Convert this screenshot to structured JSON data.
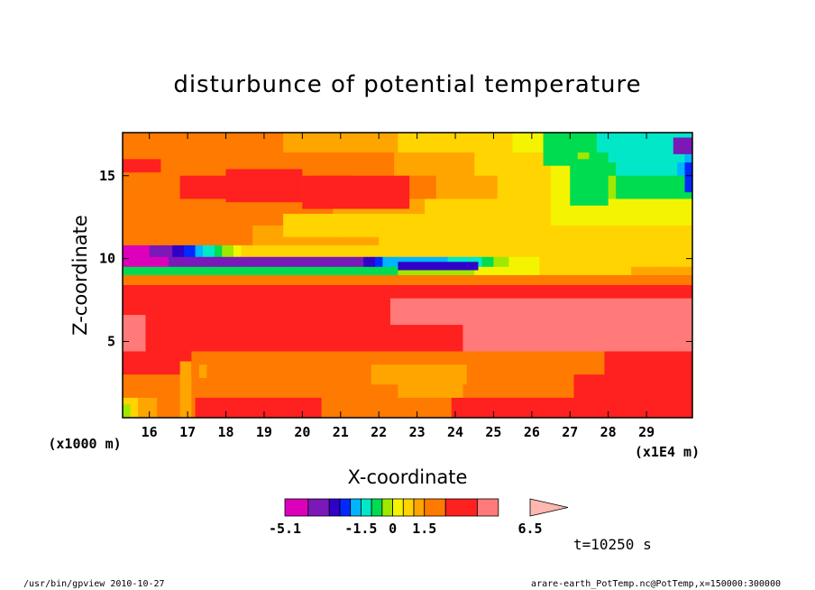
{
  "chart_data": {
    "type": "heatmap",
    "title": "disturbunce of potential temperature",
    "xlabel": "X-coordinate",
    "ylabel": "Z-coordinate",
    "x_unit_label": "(x1E4 m)",
    "y_unit_label": "(x1000 m)",
    "xlim": [
      15.3,
      30.2
    ],
    "ylim": [
      0.4,
      17.6
    ],
    "x_ticks": [
      16,
      17,
      18,
      19,
      20,
      21,
      22,
      23,
      24,
      25,
      26,
      27,
      28,
      29
    ],
    "y_ticks": [
      5,
      10,
      15
    ],
    "colorbar": {
      "levels": [
        -5.1,
        -4,
        -3,
        -2.5,
        -2,
        -1.5,
        -1,
        -0.5,
        0,
        0.5,
        1,
        1.5,
        2.5,
        4,
        5,
        6.5
      ],
      "tick_labels": [
        "-5.1",
        "-1.5",
        "0",
        "1.5",
        "6.5"
      ],
      "colors": [
        "#dd00bb",
        "#7a18b8",
        "#3000c8",
        "#0028ff",
        "#00b4ff",
        "#00e8c8",
        "#00dc50",
        "#a0e800",
        "#f4f400",
        "#ffd400",
        "#ffa500",
        "#ff7a00",
        "#ff2020",
        "#ff7a78",
        "#ffb8b0"
      ]
    },
    "field_rows": [
      {
        "z_top": 17.6,
        "z_bottom": 16.4,
        "values": [
          [
            15.3,
            2
          ],
          [
            17.5,
            2
          ],
          [
            19.5,
            1.5
          ],
          [
            22.5,
            1
          ],
          [
            24.5,
            0.7
          ],
          [
            26,
            0.4
          ],
          [
            27,
            -0.6
          ],
          [
            28,
            -1.2
          ],
          [
            30.2,
            -1.5
          ]
        ]
      },
      {
        "z_top": 16.4,
        "z_bottom": 15.0,
        "values": [
          [
            15.3,
            2.3
          ],
          [
            18,
            2
          ],
          [
            20,
            2
          ],
          [
            22,
            1.6
          ],
          [
            24.5,
            1
          ],
          [
            26.5,
            0.5
          ],
          [
            27.3,
            -0.3
          ],
          [
            28.3,
            -1.1
          ],
          [
            30.2,
            -1.6
          ]
        ]
      },
      {
        "z_top": 15.0,
        "z_bottom": 13.6,
        "values": [
          [
            15.3,
            2.1
          ],
          [
            18,
            2.8
          ],
          [
            20,
            2.4
          ],
          [
            21,
            2.7
          ],
          [
            22.5,
            1.8
          ],
          [
            24.5,
            1.2
          ],
          [
            26,
            0.7
          ],
          [
            27.3,
            0.2
          ],
          [
            28.5,
            -0.7
          ],
          [
            30.2,
            -0.9
          ]
        ]
      },
      {
        "z_top": 13.6,
        "z_bottom": 12.0,
        "values": [
          [
            15.3,
            2
          ],
          [
            18,
            2
          ],
          [
            20,
            1.7
          ],
          [
            22,
            1.2
          ],
          [
            24.5,
            0.8
          ],
          [
            26.5,
            0.5
          ],
          [
            28.5,
            0.4
          ],
          [
            30.2,
            0.3
          ]
        ]
      },
      {
        "z_top": 12.0,
        "z_bottom": 10.8,
        "values": [
          [
            15.3,
            2
          ],
          [
            17.5,
            1.8
          ],
          [
            20,
            1.2
          ],
          [
            23,
            0.9
          ],
          [
            25.5,
            0.7
          ],
          [
            28,
            0.6
          ],
          [
            30.2,
            0.6
          ]
        ]
      },
      {
        "z_top": 10.8,
        "z_bottom": 10.1,
        "values": [
          [
            15.3,
            -5.1
          ],
          [
            16,
            -4
          ],
          [
            17,
            -2.3
          ],
          [
            18.5,
            0.6
          ],
          [
            20,
            0.6
          ],
          [
            22,
            0.5
          ],
          [
            24,
            0.7
          ],
          [
            26,
            0.8
          ],
          [
            30.2,
            1
          ]
        ]
      },
      {
        "z_top": 10.1,
        "z_bottom": 9.5,
        "values": [
          [
            15.3,
            -5
          ],
          [
            16.5,
            -4
          ],
          [
            18,
            -3.8
          ],
          [
            20,
            -3.6
          ],
          [
            21.5,
            -3.3
          ],
          [
            22.3,
            -1.7
          ],
          [
            23.5,
            -1.6
          ],
          [
            24.6,
            -1.2
          ],
          [
            25.5,
            0.2
          ],
          [
            26.5,
            0.6
          ],
          [
            30.2,
            0.8
          ]
        ]
      },
      {
        "z_top": 9.5,
        "z_bottom": 9.0,
        "values": [
          [
            15.3,
            -1
          ],
          [
            17,
            -1
          ],
          [
            20,
            -1
          ],
          [
            22.5,
            -0.5
          ],
          [
            24.5,
            0
          ],
          [
            26.5,
            0.6
          ],
          [
            30.2,
            1.3
          ]
        ]
      },
      {
        "z_top": 9.0,
        "z_bottom": 8.4,
        "values": [
          [
            15.3,
            1.5
          ],
          [
            20,
            1.5
          ],
          [
            25,
            1.6
          ],
          [
            30.2,
            1.9
          ]
        ]
      },
      {
        "z_top": 8.4,
        "z_bottom": 6.6,
        "values": [
          [
            15.3,
            2.7
          ],
          [
            20,
            2.7
          ],
          [
            24,
            2.9
          ],
          [
            27,
            3
          ],
          [
            30.2,
            3.1
          ]
        ]
      },
      {
        "z_top": 6.6,
        "z_bottom": 4.4,
        "values": [
          [
            15.3,
            4.2
          ],
          [
            18,
            3.3
          ],
          [
            20,
            2.8
          ],
          [
            21.5,
            3
          ],
          [
            23,
            3.8
          ],
          [
            26,
            4.3
          ],
          [
            30.2,
            4.5
          ]
        ]
      },
      {
        "z_top": 4.4,
        "z_bottom": 3.0,
        "values": [
          [
            15.3,
            3
          ],
          [
            17.5,
            2.4
          ],
          [
            20,
            2.3
          ],
          [
            22.5,
            1.7
          ],
          [
            25,
            1.9
          ],
          [
            27,
            2.3
          ],
          [
            30.2,
            3
          ]
        ]
      },
      {
        "z_top": 3.0,
        "z_bottom": 1.6,
        "values": [
          [
            15.3,
            2.3
          ],
          [
            16.5,
            2.2
          ],
          [
            18,
            2.4
          ],
          [
            20,
            2.2
          ],
          [
            22,
            1.6
          ],
          [
            23.5,
            1.3
          ],
          [
            25,
            1.7
          ],
          [
            26.5,
            2.3
          ],
          [
            28,
            2.8
          ],
          [
            30.2,
            3
          ]
        ]
      },
      {
        "z_top": 1.6,
        "z_bottom": 0.4,
        "values": [
          [
            15.3,
            0.5
          ],
          [
            16,
            1.3
          ],
          [
            17,
            2.4
          ],
          [
            18,
            2.8
          ],
          [
            20,
            2.6
          ],
          [
            22,
            2.2
          ],
          [
            24.5,
            2.6
          ],
          [
            26.5,
            2.8
          ],
          [
            30.2,
            3
          ]
        ]
      }
    ],
    "cells": [
      {
        "x0": 15.3,
        "x1": 16.3,
        "z0": 15.2,
        "z1": 16.0,
        "value": 2.8
      },
      {
        "x0": 18.0,
        "x1": 20.0,
        "z0": 13.4,
        "z1": 15.4,
        "value": 3
      },
      {
        "x0": 20.0,
        "x1": 22.8,
        "z0": 13.0,
        "z1": 15.0,
        "value": 3.1
      },
      {
        "x0": 19.5,
        "x1": 24.5,
        "z0": 11.3,
        "z1": 12.7,
        "value": 0.6
      },
      {
        "x0": 26.3,
        "x1": 27.2,
        "z0": 15.6,
        "z1": 17.6,
        "value": -0.6
      },
      {
        "x0": 27.0,
        "x1": 28.0,
        "z0": 13.2,
        "z1": 16.0,
        "value": -0.6
      },
      {
        "x0": 28.0,
        "x1": 30.0,
        "z0": 15.8,
        "z1": 17.6,
        "value": -1.2
      },
      {
        "x0": 29.7,
        "x1": 30.2,
        "z0": 16.3,
        "z1": 17.3,
        "value": -3.5
      },
      {
        "x0": 30.0,
        "x1": 30.2,
        "z0": 14.0,
        "z1": 15.8,
        "value": -2.2
      },
      {
        "x0": 22.5,
        "x1": 24.6,
        "z0": 9.3,
        "z1": 9.8,
        "value": -3
      },
      {
        "x0": 22.3,
        "x1": 30.2,
        "z0": 6.0,
        "z1": 7.6,
        "value": 4.2
      },
      {
        "x0": 21.8,
        "x1": 24.3,
        "z0": 2.4,
        "z1": 3.6,
        "value": 1.2
      },
      {
        "x0": 15.3,
        "x1": 15.5,
        "z0": 0.4,
        "z1": 1.2,
        "value": -0.5
      },
      {
        "x0": 16.8,
        "x1": 17.1,
        "z0": 0.4,
        "z1": 3.8,
        "value": 1
      },
      {
        "x0": 17.3,
        "x1": 17.5,
        "z0": 2.8,
        "z1": 3.6,
        "value": 1.2
      }
    ]
  },
  "annotations": {
    "time_label": "t=10250 s",
    "footer_left": "/usr/bin/gpview  2010-10-27",
    "footer_right": "arare-earth_PotTemp.nc@PotTemp,x=150000:300000"
  }
}
